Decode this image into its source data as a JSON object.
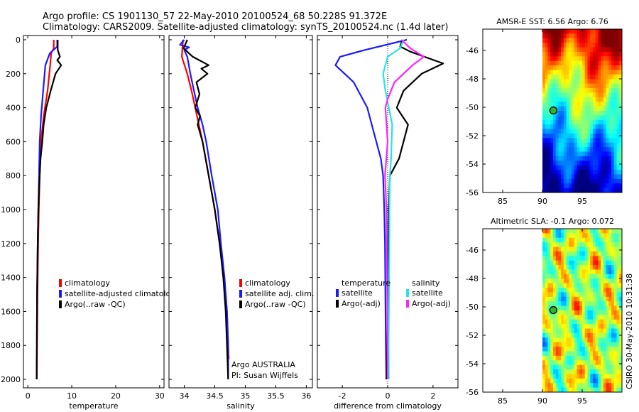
{
  "header": {
    "line1": "Argo profile: CS 1901130_57 22-May-2010 20100524_68 50.228S 91.372E",
    "line2": "Climatology: CARS2009. Satellite-adjusted climatology: synTS_20100524.nc (1.4d later)"
  },
  "credit": {
    "argo_line": "Argo AUSTRALIA",
    "pi_line": "PI: Susan Wijffels",
    "side_text": "CSIRO 30-May-2010 10:31:38"
  },
  "colors": {
    "climatology": "#ff0000",
    "satellite": "#1a1aff",
    "argo": "#000000",
    "temp_satellite": "#1a1aff",
    "sal_satellite": "#22e6e6",
    "sal_argo": "#ff22ff"
  },
  "chart_data": [
    {
      "id": "temperature",
      "type": "line",
      "xlabel": "temperature",
      "ylabel": "",
      "xlim": [
        -1,
        31
      ],
      "ylim": [
        2050,
        0
      ],
      "xticks": [
        0,
        10,
        20,
        30
      ],
      "yticks": [
        0,
        200,
        400,
        600,
        800,
        1000,
        1200,
        1400,
        1600,
        1800,
        2000
      ],
      "legend": [
        "climatology",
        "satellite-adjusted climatology",
        "Argo(..raw -QC)"
      ],
      "series": [
        {
          "name": "climatology",
          "color": "#ff0000",
          "points": [
            [
              5.9,
              0
            ],
            [
              5.9,
              50
            ],
            [
              5.3,
              80
            ],
            [
              5.1,
              150
            ],
            [
              4.5,
              300
            ],
            [
              3.6,
              450
            ],
            [
              3.0,
              600
            ],
            [
              2.7,
              800
            ],
            [
              2.5,
              1000
            ],
            [
              2.35,
              1200
            ],
            [
              2.2,
              1500
            ],
            [
              2.1,
              1800
            ],
            [
              2.05,
              2000
            ]
          ]
        },
        {
          "name": "satellite-adjusted climatology",
          "color": "#1a1aff",
          "points": [
            [
              6.7,
              0
            ],
            [
              6.7,
              40
            ],
            [
              5.0,
              80
            ],
            [
              4.0,
              150
            ],
            [
              3.5,
              300
            ],
            [
              3.0,
              450
            ],
            [
              2.7,
              600
            ],
            [
              2.55,
              800
            ],
            [
              2.4,
              1000
            ],
            [
              2.25,
              1200
            ],
            [
              2.1,
              1500
            ],
            [
              2.05,
              1800
            ],
            [
              2.0,
              2000
            ]
          ]
        },
        {
          "name": "Argo(..raw -QC)",
          "color": "#000000",
          "points": [
            [
              6.8,
              0
            ],
            [
              6.8,
              60
            ],
            [
              7.3,
              100
            ],
            [
              6.7,
              120
            ],
            [
              7.6,
              150
            ],
            [
              6.3,
              200
            ],
            [
              5.2,
              300
            ],
            [
              4.2,
              400
            ],
            [
              3.6,
              500
            ],
            [
              3.3,
              600
            ],
            [
              2.9,
              700
            ],
            [
              2.6,
              850
            ],
            [
              2.4,
              1000
            ],
            [
              2.25,
              1200
            ],
            [
              2.1,
              1500
            ],
            [
              2.05,
              1800
            ],
            [
              2.0,
              2000
            ]
          ]
        }
      ]
    },
    {
      "id": "salinity",
      "type": "line",
      "xlabel": "salinity",
      "ylabel": "",
      "xlim": [
        33.75,
        36.1
      ],
      "ylim": [
        2050,
        0
      ],
      "xticks": [
        34,
        34.5,
        35,
        35.5,
        36
      ],
      "yticks": [
        0,
        200,
        400,
        600,
        800,
        1000,
        1200,
        1400,
        1600,
        1800,
        2000
      ],
      "legend": [
        "climatology",
        "satellite adj. clim.",
        "Argo(..raw -QC)"
      ],
      "series": [
        {
          "name": "climatology",
          "color": "#ff0000",
          "points": [
            [
              33.98,
              0
            ],
            [
              33.97,
              50
            ],
            [
              33.96,
              100
            ],
            [
              34.05,
              200
            ],
            [
              34.12,
              300
            ],
            [
              34.18,
              400
            ],
            [
              34.24,
              500
            ],
            [
              34.3,
              600
            ],
            [
              34.4,
              800
            ],
            [
              34.5,
              1000
            ],
            [
              34.58,
              1200
            ],
            [
              34.65,
              1400
            ],
            [
              34.7,
              1600
            ],
            [
              34.72,
              1800
            ],
            [
              34.73,
              1880
            ]
          ]
        },
        {
          "name": "satellite adj. clim.",
          "color": "#1a1aff",
          "points": [
            [
              34.0,
              0
            ],
            [
              33.93,
              30
            ],
            [
              34.08,
              45
            ],
            [
              34.0,
              60
            ],
            [
              34.05,
              100
            ],
            [
              34.1,
              200
            ],
            [
              34.16,
              300
            ],
            [
              34.22,
              400
            ],
            [
              34.3,
              500
            ],
            [
              34.36,
              600
            ],
            [
              34.45,
              800
            ],
            [
              34.55,
              1000
            ],
            [
              34.6,
              1200
            ],
            [
              34.66,
              1400
            ],
            [
              34.7,
              1600
            ],
            [
              34.72,
              1800
            ],
            [
              34.72,
              2000
            ]
          ]
        },
        {
          "name": "Argo(..raw -QC)",
          "color": "#000000",
          "points": [
            [
              34.05,
              0
            ],
            [
              33.99,
              50
            ],
            [
              34.14,
              100
            ],
            [
              34.4,
              150
            ],
            [
              34.28,
              170
            ],
            [
              34.38,
              200
            ],
            [
              34.2,
              250
            ],
            [
              34.25,
              320
            ],
            [
              34.18,
              400
            ],
            [
              34.26,
              450
            ],
            [
              34.22,
              500
            ],
            [
              34.3,
              600
            ],
            [
              34.35,
              700
            ],
            [
              34.4,
              800
            ],
            [
              34.5,
              1000
            ],
            [
              34.58,
              1200
            ],
            [
              34.64,
              1400
            ],
            [
              34.68,
              1600
            ],
            [
              34.7,
              1800
            ],
            [
              34.72,
              2000
            ]
          ]
        }
      ]
    },
    {
      "id": "difference",
      "type": "line",
      "xlabel": "difference from climatology",
      "ylabel": "",
      "xlim": [
        -3.1,
        3.1
      ],
      "ylim": [
        2050,
        0
      ],
      "xticks": [
        -2,
        0,
        2
      ],
      "yticks": [
        0,
        200,
        400,
        600,
        800,
        1000,
        1200,
        1400,
        1600,
        1800,
        2000
      ],
      "legend_groups": [
        {
          "heading": "temperature",
          "items": [
            "satellite",
            "Argo(-adj)"
          ]
        },
        {
          "heading": "salinity",
          "items": [
            "satellite",
            "Argo(-adj)"
          ]
        }
      ],
      "series": [
        {
          "name": "satellite",
          "group": "temperature",
          "color": "#1a1aff",
          "points": [
            [
              0.85,
              0
            ],
            [
              -1.0,
              60
            ],
            [
              -2.1,
              100
            ],
            [
              -2.3,
              150
            ],
            [
              -1.5,
              250
            ],
            [
              -1.1,
              350
            ],
            [
              -0.9,
              400
            ],
            [
              -0.7,
              500
            ],
            [
              -0.5,
              600
            ],
            [
              -0.3,
              700
            ],
            [
              -0.2,
              800
            ],
            [
              -0.15,
              1000
            ],
            [
              -0.12,
              1200
            ],
            [
              -0.1,
              1500
            ],
            [
              -0.08,
              1800
            ],
            [
              -0.06,
              2000
            ]
          ]
        },
        {
          "name": "Argo(-adj)",
          "group": "temperature",
          "color": "#000000",
          "points": [
            [
              0.65,
              0
            ],
            [
              0.55,
              40
            ],
            [
              1.0,
              70
            ],
            [
              2.45,
              140
            ],
            [
              1.5,
              200
            ],
            [
              0.7,
              300
            ],
            [
              0.4,
              400
            ],
            [
              0.9,
              500
            ],
            [
              0.5,
              700
            ],
            [
              0.1,
              800
            ],
            [
              0.05,
              1000
            ],
            [
              0.0,
              1500
            ],
            [
              -0.02,
              1800
            ],
            [
              -0.04,
              2000
            ]
          ]
        },
        {
          "name": "satellite",
          "group": "salinity",
          "color": "#22e6e6",
          "points": [
            [
              0.7,
              0
            ],
            [
              0.55,
              50
            ],
            [
              0.0,
              100
            ],
            [
              -0.2,
              200
            ],
            [
              -0.1,
              300
            ],
            [
              0.05,
              400
            ],
            [
              0.2,
              500
            ],
            [
              0.15,
              700
            ],
            [
              0.1,
              800
            ],
            [
              0.08,
              1000
            ],
            [
              0.06,
              1500
            ],
            [
              0.04,
              1800
            ],
            [
              0.05,
              2000
            ]
          ]
        },
        {
          "name": "Argo(-adj)",
          "group": "salinity",
          "color": "#ff22ff",
          "points": [
            [
              0.6,
              0
            ],
            [
              1.0,
              50
            ],
            [
              1.6,
              100
            ],
            [
              1.1,
              150
            ],
            [
              0.3,
              250
            ],
            [
              0.0,
              350
            ],
            [
              -0.1,
              400
            ],
            [
              0.0,
              600
            ],
            [
              -0.12,
              800
            ],
            [
              -0.05,
              1000
            ],
            [
              -0.02,
              1500
            ],
            [
              -0.01,
              1800
            ],
            [
              0.0,
              2000
            ]
          ]
        }
      ]
    },
    {
      "id": "amsre-sst",
      "type": "heatmap",
      "title": "AMSR-E SST: 6.56  Argo: 6.76",
      "xlim": [
        82.5,
        100
      ],
      "ylim": [
        -56,
        -44.5
      ],
      "xticks": [
        85,
        90,
        95
      ],
      "yticks": [
        -46,
        -48,
        -50,
        -52,
        -54,
        -56
      ],
      "data_xrange": [
        90,
        100
      ],
      "argo_point": [
        91.372,
        -50.228
      ],
      "color_range": [
        0,
        12
      ]
    },
    {
      "id": "altimetric-sla",
      "type": "heatmap",
      "title": "Altimetric SLA: -0.1  Argo: 0.072",
      "xlim": [
        82.5,
        100
      ],
      "ylim": [
        -56,
        -44.5
      ],
      "xticks": [
        85,
        90,
        95
      ],
      "yticks": [
        -46,
        -48,
        -50,
        -52,
        -54,
        -56
      ],
      "data_xrange": [
        90,
        100
      ],
      "argo_point": [
        91.372,
        -50.228
      ],
      "color_range": [
        -0.3,
        0.3
      ]
    }
  ]
}
